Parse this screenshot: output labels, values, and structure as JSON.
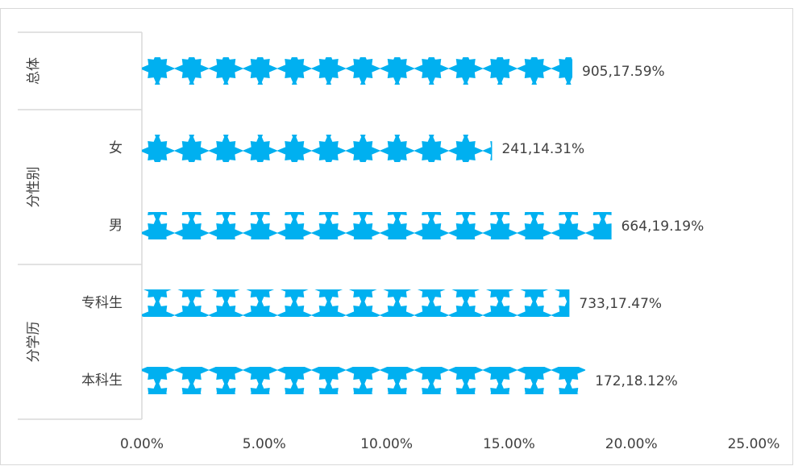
{
  "chart_data": {
    "type": "bar",
    "orientation": "horizontal",
    "groups": [
      {
        "name": "总体",
        "size": 1
      },
      {
        "name": "分性别",
        "size": 2
      },
      {
        "name": "分学历",
        "size": 2
      }
    ],
    "categories": [
      null,
      "女",
      "男",
      "专科生",
      "本科生"
    ],
    "values": [
      17.59,
      14.31,
      19.19,
      17.47,
      18.12
    ],
    "value_labels": [
      "905,17.59%",
      "241,14.31%",
      "664,19.19%",
      "733,17.47%",
      "172,18.12%"
    ],
    "color": "#00b0f0",
    "xlim": [
      0,
      25
    ],
    "xticks": [
      {
        "value": 0,
        "label": "0.00%"
      },
      {
        "value": 5,
        "label": "5.00%"
      },
      {
        "value": 10,
        "label": "10.00%"
      },
      {
        "value": 15,
        "label": "15.00%"
      },
      {
        "value": 20,
        "label": "20.00%"
      },
      {
        "value": 25,
        "label": "25.00%"
      }
    ]
  }
}
